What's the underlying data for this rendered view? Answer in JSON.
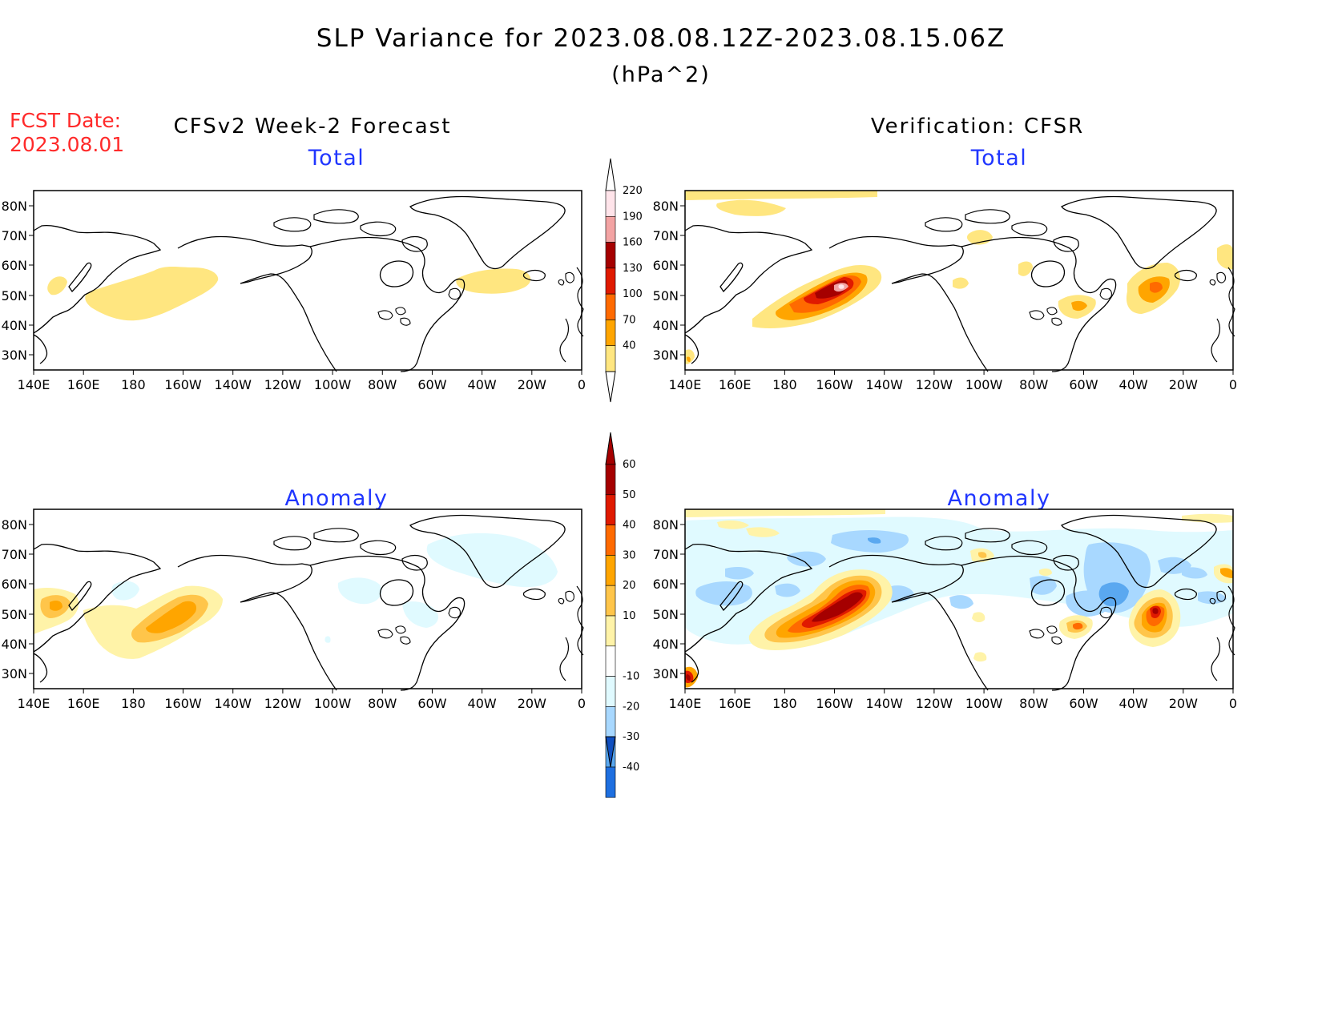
{
  "header": {
    "title": "SLP Variance for 2023.08.08.12Z-2023.08.15.06Z",
    "units": "(hPa^2)",
    "fcst_date_label": "FCST Date:",
    "fcst_date_value": "2023.08.01"
  },
  "columns": {
    "left": "CFSv2 Week-2 Forecast",
    "right": "Verification: CFSR"
  },
  "panels": {
    "forecast_total": "Total",
    "verification_total": "Total",
    "forecast_anomaly": "Anomaly",
    "verification_anomaly": "Anomaly"
  },
  "axes": {
    "lat_labels": [
      "80N",
      "70N",
      "60N",
      "50N",
      "40N",
      "30N"
    ],
    "lon_labels": [
      "140E",
      "160E",
      "180",
      "160W",
      "140W",
      "120W",
      "100W",
      "80W",
      "60W",
      "40W",
      "20W",
      "0"
    ]
  },
  "colorbars": {
    "total": {
      "labels": [
        "220",
        "190",
        "160",
        "130",
        "100",
        "70",
        "40"
      ],
      "colors": [
        "#ffe4ea",
        "#f3a3a3",
        "#a50000",
        "#e01a00",
        "#ff6a00",
        "#ffa500",
        "#ffe680"
      ]
    },
    "anomaly": {
      "labels": [
        "60",
        "50",
        "40",
        "30",
        "20",
        "10",
        "-10",
        "-20",
        "-30",
        "-40"
      ],
      "pos_colors": [
        "#a50000",
        "#e01a00",
        "#ff6a00",
        "#ffa500",
        "#ffc54a",
        "#fff3a8"
      ],
      "neg_colors": [
        "#e0faff",
        "#a8d8ff",
        "#5aa8f0",
        "#1e6fe0",
        "#0f4fc0"
      ]
    }
  },
  "colors": {
    "title_red": "#ff2a2a",
    "subtitle_blue": "#2036ff"
  }
}
